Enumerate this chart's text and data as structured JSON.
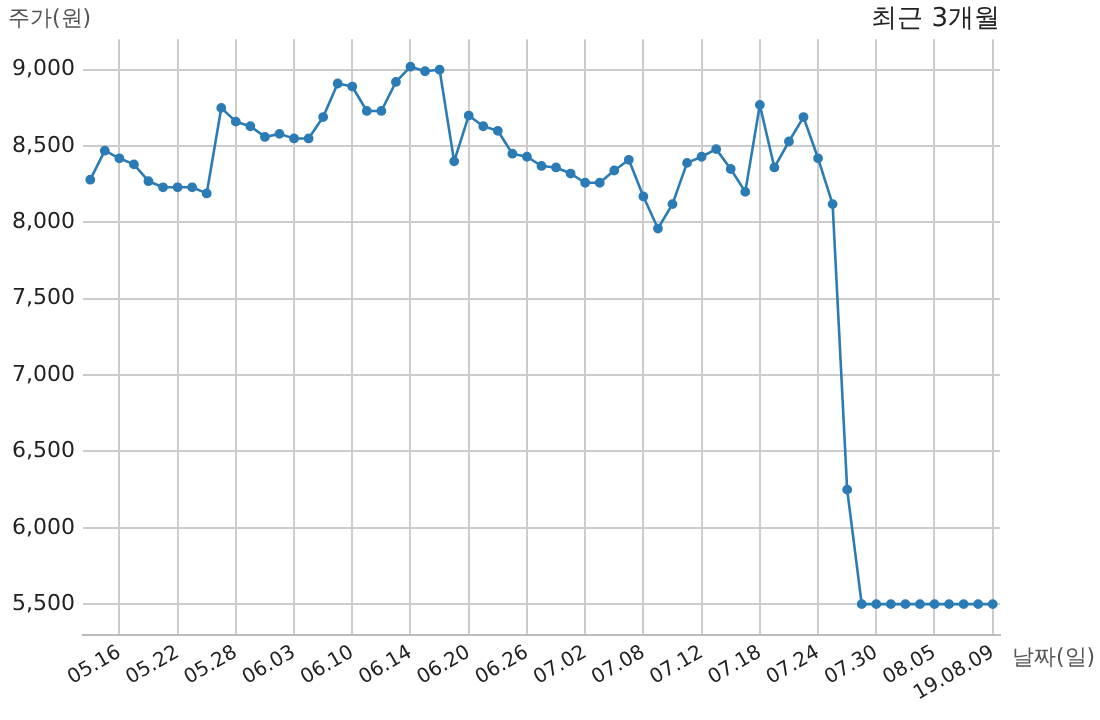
{
  "chart_data": {
    "type": "line",
    "title": "최근 3개월",
    "xlabel": "날짜(일)",
    "ylabel": "주가(원)",
    "categories": [
      null,
      null,
      "05.16",
      null,
      null,
      null,
      "05.22",
      null,
      null,
      null,
      "05.28",
      null,
      null,
      null,
      "06.03",
      null,
      null,
      null,
      "06.10",
      null,
      null,
      null,
      "06.14",
      null,
      null,
      null,
      "06.20",
      null,
      null,
      null,
      "06.26",
      null,
      null,
      null,
      "07.02",
      null,
      null,
      null,
      "07.08",
      null,
      null,
      null,
      "07.12",
      null,
      null,
      null,
      "07.18",
      null,
      null,
      null,
      "07.24",
      null,
      null,
      null,
      "07.30",
      null,
      null,
      null,
      "08.05",
      null,
      null,
      null,
      "19.08.09"
    ],
    "series": [
      {
        "color": "#2b7bb5",
        "values": [
          8280,
          8470,
          8420,
          8380,
          8270,
          8230,
          8230,
          8230,
          8190,
          8750,
          8660,
          8630,
          8560,
          8580,
          8550,
          8550,
          8690,
          8910,
          8890,
          8730,
          8730,
          8920,
          9020,
          8990,
          9000,
          8400,
          8700,
          8630,
          8600,
          8450,
          8430,
          8370,
          8360,
          8320,
          8260,
          8260,
          8340,
          8410,
          8170,
          7960,
          8120,
          8390,
          8430,
          8480,
          8350,
          8200,
          8770,
          8360,
          8530,
          8690,
          8420,
          8120,
          6250,
          5500,
          5500,
          5500,
          5500,
          5500,
          5500,
          5500,
          5500,
          5500,
          5500
        ]
      }
    ],
    "ylim": [
      5300,
      9200
    ],
    "yticks": [
      {
        "value": 5500,
        "label": "5,500"
      },
      {
        "value": 6000,
        "label": "6,000"
      },
      {
        "value": 6500,
        "label": "6,500"
      },
      {
        "value": 7000,
        "label": "7,000"
      },
      {
        "value": 7500,
        "label": "7,500"
      },
      {
        "value": 8000,
        "label": "8,000"
      },
      {
        "value": 8500,
        "label": "8,500"
      },
      {
        "value": 9000,
        "label": "9,000"
      }
    ],
    "grid": true,
    "legend": false,
    "marker": "circle",
    "line_style": "solid"
  }
}
